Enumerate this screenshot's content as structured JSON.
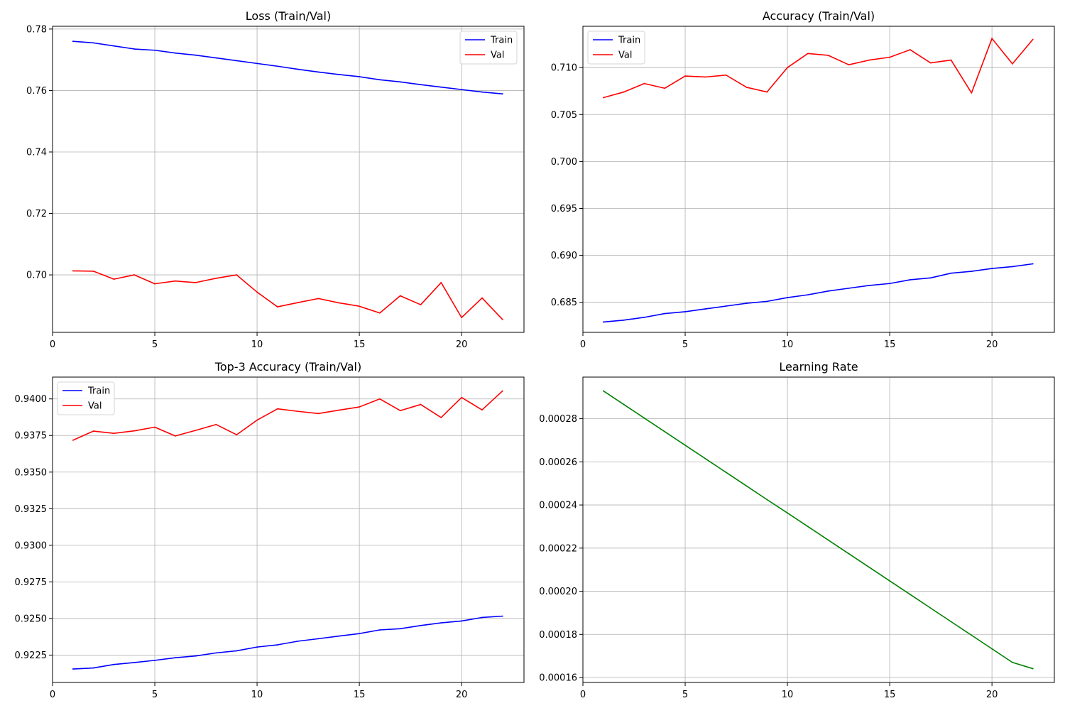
{
  "chart_data": [
    {
      "type": "line",
      "title": "Loss (Train/Val)",
      "xlabel": "",
      "ylabel": "",
      "xlim": [
        0,
        23.05
      ],
      "ylim": [
        0.6813,
        0.7809
      ],
      "x_ticks": [
        0,
        5,
        10,
        15,
        20
      ],
      "y_ticks": [
        0.7,
        0.72,
        0.74,
        0.76,
        0.78
      ],
      "y_tick_labels": [
        "0.70",
        "0.72",
        "0.74",
        "0.76",
        "0.78"
      ],
      "grid": true,
      "legend_position": "top-right",
      "x": [
        1,
        2,
        3,
        4,
        5,
        6,
        7,
        8,
        9,
        10,
        11,
        12,
        13,
        14,
        15,
        16,
        17,
        18,
        19,
        20,
        21,
        22
      ],
      "series": [
        {
          "name": "Train",
          "color": "#0000ff",
          "values": [
            0.776,
            0.7755,
            0.7745,
            0.7735,
            0.7731,
            0.7722,
            0.7715,
            0.7706,
            0.7697,
            0.7688,
            0.7679,
            0.7669,
            0.766,
            0.7652,
            0.7645,
            0.7635,
            0.7628,
            0.7619,
            0.7611,
            0.7603,
            0.7595,
            0.7589
          ]
        },
        {
          "name": "Val",
          "color": "#ff0000",
          "values": [
            0.7013,
            0.7012,
            0.6986,
            0.7,
            0.6971,
            0.698,
            0.6975,
            0.6989,
            0.7,
            0.6944,
            0.6896,
            0.691,
            0.6923,
            0.6909,
            0.6898,
            0.6876,
            0.6932,
            0.6903,
            0.6975,
            0.6861,
            0.6925,
            0.6855
          ]
        }
      ]
    },
    {
      "type": "line",
      "title": "Accuracy (Train/Val)",
      "xlabel": "",
      "ylabel": "",
      "xlim": [
        0,
        23.05
      ],
      "ylim": [
        0.6818,
        0.7144
      ],
      "x_ticks": [
        0,
        5,
        10,
        15,
        20
      ],
      "y_ticks": [
        0.685,
        0.69,
        0.695,
        0.7,
        0.705,
        0.71
      ],
      "y_tick_labels": [
        "0.685",
        "0.690",
        "0.695",
        "0.700",
        "0.705",
        "0.710"
      ],
      "grid": true,
      "legend_position": "top-left",
      "x": [
        1,
        2,
        3,
        4,
        5,
        6,
        7,
        8,
        9,
        10,
        11,
        12,
        13,
        14,
        15,
        16,
        17,
        18,
        19,
        20,
        21,
        22
      ],
      "series": [
        {
          "name": "Train",
          "color": "#0000ff",
          "values": [
            0.6829,
            0.6831,
            0.6834,
            0.6838,
            0.684,
            0.6843,
            0.6846,
            0.6849,
            0.6851,
            0.6855,
            0.6858,
            0.6862,
            0.6865,
            0.6868,
            0.687,
            0.6874,
            0.6876,
            0.6881,
            0.6883,
            0.6886,
            0.6888,
            0.6891
          ]
        },
        {
          "name": "Val",
          "color": "#ff0000",
          "values": [
            0.7068,
            0.7074,
            0.7083,
            0.7078,
            0.7091,
            0.709,
            0.7092,
            0.7079,
            0.7074,
            0.71,
            0.7115,
            0.7113,
            0.7103,
            0.7108,
            0.7111,
            0.7119,
            0.7105,
            0.7108,
            0.7073,
            0.7131,
            0.7104,
            0.713
          ]
        }
      ]
    },
    {
      "type": "line",
      "title": "Top-3 Accuracy (Train/Val)",
      "xlabel": "",
      "ylabel": "",
      "xlim": [
        0,
        23.05
      ],
      "ylim": [
        0.92063,
        0.94149
      ],
      "x_ticks": [
        0,
        5,
        10,
        15,
        20
      ],
      "y_ticks": [
        0.9225,
        0.925,
        0.9275,
        0.93,
        0.9325,
        0.935,
        0.9375,
        0.94
      ],
      "y_tick_labels": [
        "0.9225",
        "0.9250",
        "0.9275",
        "0.9300",
        "0.9325",
        "0.9350",
        "0.9375",
        "0.9400"
      ],
      "grid": true,
      "legend_position": "top-left",
      "x": [
        1,
        2,
        3,
        4,
        5,
        6,
        7,
        8,
        9,
        10,
        11,
        12,
        13,
        14,
        15,
        16,
        17,
        18,
        19,
        20,
        21,
        22
      ],
      "series": [
        {
          "name": "Train",
          "color": "#0000ff",
          "values": [
            0.92155,
            0.92162,
            0.92186,
            0.92199,
            0.92214,
            0.92232,
            0.92244,
            0.92265,
            0.92279,
            0.92305,
            0.9232,
            0.92345,
            0.92362,
            0.9238,
            0.92397,
            0.92422,
            0.9243,
            0.92452,
            0.9247,
            0.92483,
            0.92507,
            0.92516
          ]
        },
        {
          "name": "Val",
          "color": "#ff0000",
          "values": [
            0.93718,
            0.9378,
            0.93765,
            0.93782,
            0.93807,
            0.93747,
            0.93785,
            0.93825,
            0.93755,
            0.93855,
            0.93932,
            0.93915,
            0.939,
            0.93923,
            0.93945,
            0.94,
            0.9392,
            0.93962,
            0.93873,
            0.9401,
            0.93925,
            0.94054
          ]
        }
      ]
    },
    {
      "type": "line",
      "title": "Learning Rate",
      "xlabel": "",
      "ylabel": "",
      "xlim": [
        0,
        23.05
      ],
      "ylim": [
        0.0001577,
        0.0002993
      ],
      "x_ticks": [
        0,
        5,
        10,
        15,
        20
      ],
      "y_ticks": [
        0.00016,
        0.00018,
        0.0002,
        0.00022,
        0.00024,
        0.00026,
        0.00028
      ],
      "y_tick_labels": [
        "0.00016",
        "0.00018",
        "0.00020",
        "0.00022",
        "0.00024",
        "0.00026",
        "0.00028"
      ],
      "grid": true,
      "legend_position": "",
      "x": [
        1,
        2,
        3,
        4,
        5,
        6,
        7,
        8,
        9,
        10,
        11,
        12,
        13,
        14,
        15,
        16,
        17,
        18,
        19,
        20,
        21,
        22
      ],
      "series": [
        {
          "color": "#008000",
          "values": [
            0.0002929,
            0.0002866,
            0.0002803,
            0.000274,
            0.0002677,
            0.0002614,
            0.0002551,
            0.0002488,
            0.0002425,
            0.0002363,
            0.00023,
            0.0002237,
            0.0002174,
            0.0002111,
            0.0002048,
            0.0001985,
            0.0001922,
            0.0001859,
            0.0001796,
            0.0001733,
            0.000167,
            0.0001641
          ]
        }
      ]
    }
  ]
}
